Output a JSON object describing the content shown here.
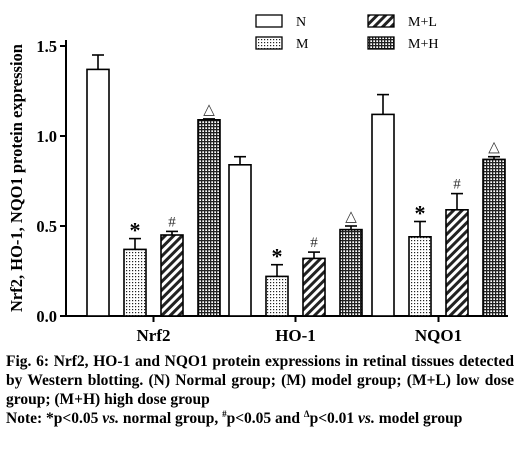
{
  "chart_data": {
    "type": "bar",
    "ylabel": "Nrf2, HO-1, NQO1 protein expression",
    "ylim": [
      0,
      1.5
    ],
    "yticks": [
      "0.0",
      "0.5",
      "1.0",
      "1.5"
    ],
    "categories": [
      "Nrf2",
      "HO-1",
      "NQO1"
    ],
    "series": [
      {
        "name": "N",
        "pattern": "solid-white",
        "values": [
          1.37,
          0.84,
          1.12
        ],
        "errors": [
          0.08,
          0.045,
          0.11
        ],
        "marks": [
          "",
          "",
          ""
        ]
      },
      {
        "name": "M",
        "pattern": "dots",
        "values": [
          0.37,
          0.22,
          0.44
        ],
        "errors": [
          0.06,
          0.065,
          0.085
        ],
        "marks": [
          "*",
          "*",
          "*"
        ]
      },
      {
        "name": "M+L",
        "pattern": "diagonal-hatch",
        "values": [
          0.45,
          0.32,
          0.59
        ],
        "errors": [
          0.02,
          0.035,
          0.09
        ],
        "marks": [
          "#",
          "#",
          "#"
        ]
      },
      {
        "name": "M+H",
        "pattern": "crosshatch",
        "values": [
          1.09,
          0.48,
          0.87
        ],
        "errors": [
          0.005,
          0.02,
          0.015
        ],
        "marks": [
          "△",
          "△",
          "△"
        ]
      }
    ],
    "legend_position": "top-right",
    "grid": false
  },
  "caption": {
    "line1": "Fig. 6: Nrf2, HO-1 and NQO1 protein expressions in retinal tissues detected by Western blotting. (N) Normal group; (M) model group; (M+L) low dose group; (M+H) high dose group",
    "note_prefix": "Note: *p<0.05 ",
    "vs1": "vs.",
    "note_mid1": " normal group, ",
    "hash_sup": "#",
    "note_mid2": "p<0.05 and ",
    "delta_sup": "Δ",
    "note_mid3": "p<0.01 ",
    "vs2": "vs.",
    "note_end": " model group"
  }
}
